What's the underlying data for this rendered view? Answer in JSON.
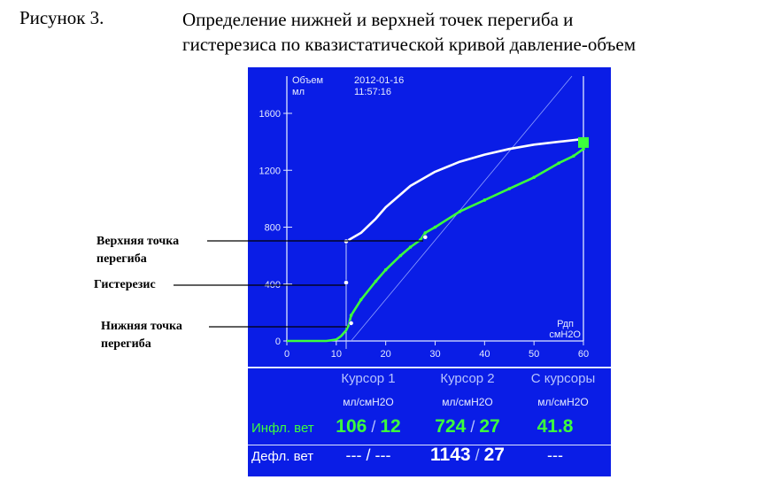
{
  "caption": {
    "label": "Рисунок 3.",
    "title_line1": "Определение нижней и верхней точек перегиба и",
    "title_line2": "гистерезиса по квазистатической кривой давление-объем"
  },
  "annotations": {
    "upper_line1": "Верхняя точка",
    "upper_line2": "перегиба",
    "hysteresis": "Гистерезис",
    "lower_line1": "Нижняя точка",
    "lower_line2": "перегиба"
  },
  "screen": {
    "y_label_line1": "Объем",
    "y_label_line2": "мл",
    "date": "2012-01-16",
    "time": "11:57:16",
    "x_label_line1": "Рдп",
    "x_label_line2": "смН2О",
    "cursor1": "Курсор 1",
    "cursor2": "Курсор 2",
    "between": "С курсоры",
    "unit1": "мл/смН2О",
    "unit2": "мл/смН2О",
    "unit3": "мл/смН2О",
    "infl_label": "Инфл. вет",
    "defl_label": "Дефл. вет",
    "infl_c1_a": "106",
    "infl_c1_b": "12",
    "infl_c2_a": "724",
    "infl_c2_b": "27",
    "infl_between": "41.8",
    "defl_c1_a": "---",
    "defl_c1_b": "---",
    "defl_c2_a": "1143",
    "defl_c2_b": "27",
    "defl_between": "---",
    "slash": "/"
  },
  "colors": {
    "screen_bg": "#0a1de6",
    "inflation": "#3cff3c",
    "deflation": "#ffffff",
    "axis": "#dfe6ff"
  },
  "chart_data": {
    "type": "line",
    "x_ticks": [
      0,
      10,
      20,
      30,
      40,
      50,
      60
    ],
    "y_ticks": [
      0,
      400,
      800,
      1200,
      1600
    ],
    "xlim": [
      0,
      60
    ],
    "ylim": [
      0,
      1600
    ],
    "grid": false,
    "series": [
      {
        "color": "#3cff3c",
        "x": [
          0,
          8,
          10,
          11,
          12,
          12.5,
          13,
          15,
          18,
          20,
          23,
          25,
          27,
          28,
          30,
          35,
          40,
          45,
          50,
          55,
          58,
          60
        ],
        "y": [
          0,
          0,
          10,
          35,
          75,
          110,
          180,
          290,
          420,
          500,
          600,
          660,
          710,
          760,
          800,
          910,
          990,
          1070,
          1150,
          1250,
          1300,
          1350
        ]
      },
      {
        "color": "#ffffff",
        "x": [
          12,
          15,
          18,
          20,
          23,
          25,
          30,
          35,
          40,
          45,
          50,
          55,
          60
        ],
        "y": [
          700,
          760,
          860,
          940,
          1030,
          1090,
          1190,
          1260,
          1310,
          1350,
          1380,
          1400,
          1420
        ]
      }
    ],
    "cursors_x": [
      12,
      27
    ],
    "markers": [
      {
        "x": 12,
        "y": 700
      },
      {
        "x": 12,
        "y": 410
      },
      {
        "x": 13,
        "y": 125
      },
      {
        "x": 28,
        "y": 730
      }
    ]
  }
}
